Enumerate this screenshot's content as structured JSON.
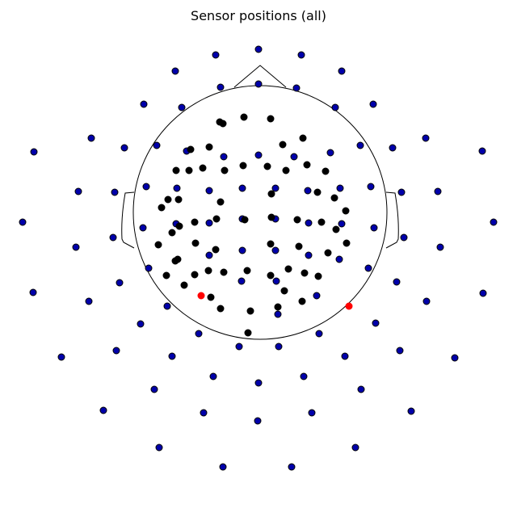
{
  "chart_data": {
    "type": "scatter",
    "title": "Sensor positions (all)",
    "xlabel": "",
    "ylabel": "",
    "grid": false,
    "axes_visible": false,
    "colors": {
      "head_outline": "#000000",
      "blue_sensor_fill": "#0000aa",
      "black_sensor_fill": "#000000",
      "red_sensor_fill": "#ff0000",
      "sensor_edge": "#000000"
    },
    "series": [
      {
        "kind": "blue",
        "points": [
          [
            320,
            61
          ],
          [
            267,
            68
          ],
          [
            373,
            68
          ],
          [
            217,
            88
          ],
          [
            423,
            88
          ],
          [
            273,
            108
          ],
          [
            320,
            104
          ],
          [
            367,
            109
          ],
          [
            178,
            129
          ],
          [
            462,
            129
          ],
          [
            225,
            133
          ],
          [
            415,
            133
          ],
          [
            113,
            171
          ],
          [
            527,
            171
          ],
          [
            154,
            183
          ],
          [
            194,
            180
          ],
          [
            446,
            180
          ],
          [
            486,
            183
          ],
          [
            42,
            188
          ],
          [
            597,
            187
          ],
          [
            231,
            187
          ],
          [
            277,
            194
          ],
          [
            320,
            192
          ],
          [
            364,
            194
          ],
          [
            409,
            189
          ],
          [
            97,
            237
          ],
          [
            142,
            238
          ],
          [
            181,
            231
          ],
          [
            219,
            233
          ],
          [
            259,
            236
          ],
          [
            300,
            233
          ],
          [
            341,
            233
          ],
          [
            381,
            236
          ],
          [
            421,
            233
          ],
          [
            459,
            231
          ],
          [
            497,
            238
          ],
          [
            542,
            237
          ],
          [
            28,
            275
          ],
          [
            177,
            282
          ],
          [
            218,
            277
          ],
          [
            259,
            276
          ],
          [
            300,
            271
          ],
          [
            341,
            271
          ],
          [
            382,
            276
          ],
          [
            423,
            277
          ],
          [
            463,
            282
          ],
          [
            611,
            275
          ],
          [
            140,
            294
          ],
          [
            500,
            294
          ],
          [
            94,
            306
          ],
          [
            259,
            316
          ],
          [
            300,
            310
          ],
          [
            341,
            310
          ],
          [
            382,
            316
          ],
          [
            420,
            321
          ],
          [
            545,
            306
          ],
          [
            184,
            332
          ],
          [
            456,
            332
          ],
          [
            148,
            350
          ],
          [
            299,
            348
          ],
          [
            342,
            348
          ],
          [
            491,
            349
          ],
          [
            41,
            362
          ],
          [
            598,
            363
          ],
          [
            110,
            373
          ],
          [
            207,
            379
          ],
          [
            392,
            366
          ],
          [
            528,
            373
          ],
          [
            344,
            389
          ],
          [
            174,
            401
          ],
          [
            465,
            400
          ],
          [
            246,
            413
          ],
          [
            395,
            413
          ],
          [
            76,
            442
          ],
          [
            144,
            434
          ],
          [
            213,
            441
          ],
          [
            296,
            429
          ],
          [
            345,
            429
          ],
          [
            427,
            441
          ],
          [
            495,
            434
          ],
          [
            563,
            443
          ],
          [
            264,
            466
          ],
          [
            376,
            466
          ],
          [
            191,
            482
          ],
          [
            320,
            474
          ],
          [
            447,
            482
          ],
          [
            128,
            508
          ],
          [
            252,
            511
          ],
          [
            319,
            521
          ],
          [
            386,
            511
          ],
          [
            509,
            509
          ],
          [
            197,
            554
          ],
          [
            440,
            554
          ],
          [
            276,
            578
          ],
          [
            361,
            578
          ]
        ]
      },
      {
        "kind": "black",
        "points": [
          [
            272,
            151
          ],
          [
            276,
            153
          ],
          [
            302,
            145
          ],
          [
            335,
            147
          ],
          [
            375,
            171
          ],
          [
            350,
            179
          ],
          [
            259,
            182
          ],
          [
            236,
            185
          ],
          [
            380,
            204
          ],
          [
            331,
            206
          ],
          [
            301,
            205
          ],
          [
            251,
            208
          ],
          [
            234,
            211
          ],
          [
            218,
            211
          ],
          [
            278,
            211
          ],
          [
            354,
            211
          ],
          [
            403,
            212
          ],
          [
            336,
            240
          ],
          [
            393,
            238
          ],
          [
            208,
            247
          ],
          [
            221,
            247
          ],
          [
            414,
            245
          ],
          [
            273,
            250
          ],
          [
            200,
            257
          ],
          [
            428,
            261
          ],
          [
            268,
            271
          ],
          [
            241,
            275
          ],
          [
            222,
            280
          ],
          [
            303,
            272
          ],
          [
            336,
            269
          ],
          [
            368,
            272
          ],
          [
            398,
            275
          ],
          [
            416,
            284
          ],
          [
            213,
            288
          ],
          [
            429,
            301
          ],
          [
            196,
            303
          ],
          [
            242,
            301
          ],
          [
            267,
            309
          ],
          [
            335,
            302
          ],
          [
            370,
            305
          ],
          [
            406,
            313
          ],
          [
            220,
            321
          ],
          [
            217,
            323
          ],
          [
            357,
            333
          ],
          [
            206,
            341
          ],
          [
            258,
            335
          ],
          [
            277,
            337
          ],
          [
            306,
            335
          ],
          [
            335,
            341
          ],
          [
            377,
            338
          ],
          [
            394,
            342
          ],
          [
            241,
            340
          ],
          [
            228,
            353
          ],
          [
            352,
            360
          ],
          [
            261,
            368
          ],
          [
            374,
            373
          ],
          [
            273,
            382
          ],
          [
            310,
            385
          ],
          [
            344,
            380
          ],
          [
            307,
            412
          ]
        ]
      },
      {
        "kind": "red",
        "points": [
          [
            249,
            366
          ],
          [
            432,
            379
          ]
        ]
      }
    ]
  }
}
